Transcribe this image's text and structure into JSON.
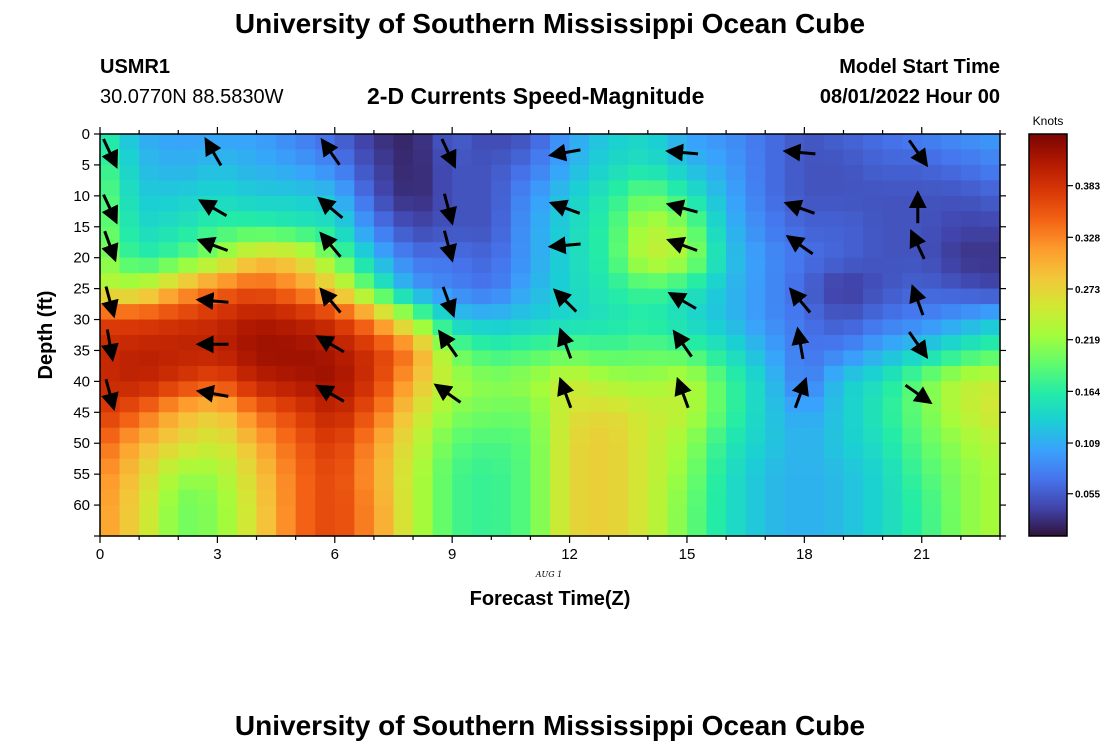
{
  "title": "University of Southern Mississippi Ocean Cube",
  "station": {
    "name": "USMR1",
    "coords": "30.0770N  88.5830W"
  },
  "subtitle": "2-D Currents Speed-Magnitude",
  "model": {
    "label": "Model Start Time",
    "value": "08/01/2022 Hour 00"
  },
  "date_note": "AUG  1",
  "second_title": "University of Southern Mississippi Ocean Cube",
  "colors": {
    "arrow": "#000000",
    "colormap": [
      "#30123b",
      "#4145ab",
      "#4675ed",
      "#39a2fc",
      "#1bcfd4",
      "#24eca6",
      "#61fc6c",
      "#a4fc3b",
      "#d1e834",
      "#f3c63a",
      "#fe9b2d",
      "#f36315",
      "#d93806",
      "#b11901",
      "#7a0402"
    ]
  },
  "chart_data": {
    "type": "heatmap",
    "xlabel": "Forecast Time(Z)",
    "ylabel": "Depth (ft)",
    "xlim": [
      0,
      23
    ],
    "ylim": [
      0,
      65
    ],
    "y_inverted": true,
    "x_ticks": [
      "0",
      "3",
      "6",
      "9",
      "12",
      "15",
      "18",
      "21"
    ],
    "y_ticks": [
      "0",
      "5",
      "10",
      "15",
      "20",
      "25",
      "30",
      "35",
      "40",
      "45",
      "50",
      "55",
      "60"
    ],
    "colorbar": {
      "title": "Knots",
      "range": [
        0.01,
        0.438
      ],
      "tick_labels": [
        "0.383",
        "0.328",
        "0.273",
        "0.219",
        "0.164",
        "0.109",
        "0.055"
      ]
    },
    "speed_knots": {
      "hours": [
        0,
        1,
        2,
        3,
        4,
        5,
        6,
        7,
        8,
        9,
        10,
        11,
        12,
        13,
        14,
        15,
        16,
        17,
        18,
        19,
        20,
        21,
        22,
        23
      ],
      "depths_ft": [
        0,
        5,
        10,
        15,
        20,
        25,
        30,
        35,
        40,
        45,
        50,
        55,
        60,
        65
      ],
      "values": [
        [
          0.17,
          0.11,
          0.1,
          0.1,
          0.1,
          0.08,
          0.06,
          0.03,
          0.02,
          0.06,
          0.04,
          0.05,
          0.1,
          0.13,
          0.14,
          0.1,
          0.09,
          0.07,
          0.05,
          0.06,
          0.07,
          0.08,
          0.09,
          0.1
        ],
        [
          0.19,
          0.12,
          0.11,
          0.12,
          0.11,
          0.1,
          0.08,
          0.04,
          0.02,
          0.05,
          0.05,
          0.07,
          0.11,
          0.14,
          0.15,
          0.12,
          0.1,
          0.07,
          0.05,
          0.05,
          0.06,
          0.06,
          0.07,
          0.08
        ],
        [
          0.2,
          0.13,
          0.13,
          0.14,
          0.13,
          0.13,
          0.12,
          0.05,
          0.02,
          0.05,
          0.05,
          0.09,
          0.13,
          0.16,
          0.2,
          0.16,
          0.11,
          0.07,
          0.05,
          0.05,
          0.05,
          0.05,
          0.05,
          0.06
        ],
        [
          0.21,
          0.14,
          0.15,
          0.17,
          0.17,
          0.16,
          0.15,
          0.08,
          0.04,
          0.05,
          0.05,
          0.1,
          0.14,
          0.17,
          0.24,
          0.21,
          0.12,
          0.08,
          0.06,
          0.06,
          0.05,
          0.05,
          0.04,
          0.04
        ],
        [
          0.22,
          0.16,
          0.18,
          0.22,
          0.28,
          0.27,
          0.2,
          0.12,
          0.07,
          0.07,
          0.06,
          0.1,
          0.14,
          0.17,
          0.25,
          0.23,
          0.13,
          0.09,
          0.07,
          0.06,
          0.05,
          0.05,
          0.03,
          0.03
        ],
        [
          0.24,
          0.24,
          0.3,
          0.34,
          0.36,
          0.33,
          0.28,
          0.18,
          0.1,
          0.08,
          0.07,
          0.11,
          0.14,
          0.16,
          0.18,
          0.16,
          0.12,
          0.09,
          0.06,
          0.03,
          0.05,
          0.06,
          0.05,
          0.04
        ],
        [
          0.37,
          0.37,
          0.38,
          0.39,
          0.41,
          0.4,
          0.38,
          0.32,
          0.22,
          0.13,
          0.12,
          0.13,
          0.14,
          0.15,
          0.16,
          0.14,
          0.12,
          0.09,
          0.07,
          0.05,
          0.07,
          0.08,
          0.1,
          0.12
        ],
        [
          0.39,
          0.4,
          0.4,
          0.4,
          0.42,
          0.42,
          0.41,
          0.38,
          0.33,
          0.2,
          0.17,
          0.18,
          0.19,
          0.18,
          0.19,
          0.18,
          0.15,
          0.11,
          0.07,
          0.08,
          0.11,
          0.13,
          0.16,
          0.18
        ],
        [
          0.39,
          0.4,
          0.38,
          0.36,
          0.4,
          0.41,
          0.42,
          0.38,
          0.3,
          0.23,
          0.21,
          0.22,
          0.25,
          0.23,
          0.22,
          0.24,
          0.18,
          0.13,
          0.07,
          0.13,
          0.15,
          0.2,
          0.24,
          0.25
        ],
        [
          0.38,
          0.35,
          0.3,
          0.28,
          0.34,
          0.37,
          0.4,
          0.35,
          0.27,
          0.21,
          0.2,
          0.2,
          0.26,
          0.27,
          0.25,
          0.24,
          0.18,
          0.13,
          0.1,
          0.13,
          0.16,
          0.2,
          0.24,
          0.26
        ],
        [
          0.35,
          0.3,
          0.27,
          0.25,
          0.3,
          0.35,
          0.38,
          0.32,
          0.25,
          0.19,
          0.18,
          0.19,
          0.27,
          0.28,
          0.25,
          0.22,
          0.16,
          0.13,
          0.11,
          0.13,
          0.15,
          0.19,
          0.22,
          0.24
        ],
        [
          0.33,
          0.28,
          0.22,
          0.22,
          0.28,
          0.34,
          0.37,
          0.31,
          0.24,
          0.18,
          0.17,
          0.19,
          0.27,
          0.28,
          0.25,
          0.21,
          0.15,
          0.12,
          0.11,
          0.12,
          0.14,
          0.18,
          0.21,
          0.23
        ],
        [
          0.32,
          0.27,
          0.2,
          0.21,
          0.27,
          0.34,
          0.37,
          0.32,
          0.24,
          0.18,
          0.17,
          0.19,
          0.27,
          0.28,
          0.25,
          0.2,
          0.15,
          0.12,
          0.11,
          0.12,
          0.14,
          0.17,
          0.21,
          0.23
        ],
        [
          0.32,
          0.27,
          0.2,
          0.21,
          0.27,
          0.34,
          0.37,
          0.32,
          0.24,
          0.18,
          0.17,
          0.19,
          0.27,
          0.28,
          0.25,
          0.2,
          0.15,
          0.12,
          0.11,
          0.12,
          0.14,
          0.17,
          0.21,
          0.23
        ]
      ]
    },
    "arrow_rows_depth_ft": [
      3,
      12,
      18,
      27,
      34,
      42
    ],
    "arrow_columns_hour": [
      0.15,
      2.9,
      5.9,
      8.9,
      11.9,
      14.9,
      17.9,
      20.9
    ],
    "arrow_directions_deg": [
      [
        -65,
        120,
        125,
        -65,
        190,
        175,
        175,
        -55
      ],
      [
        -65,
        150,
        140,
        -75,
        160,
        165,
        160,
        90
      ],
      [
        -70,
        160,
        130,
        -75,
        185,
        160,
        145,
        115
      ],
      [
        -75,
        175,
        130,
        -70,
        135,
        150,
        130,
        110
      ],
      [
        -80,
        180,
        150,
        125,
        110,
        125,
        100,
        -55
      ],
      [
        -75,
        170,
        150,
        145,
        110,
        110,
        70,
        -35
      ]
    ]
  }
}
